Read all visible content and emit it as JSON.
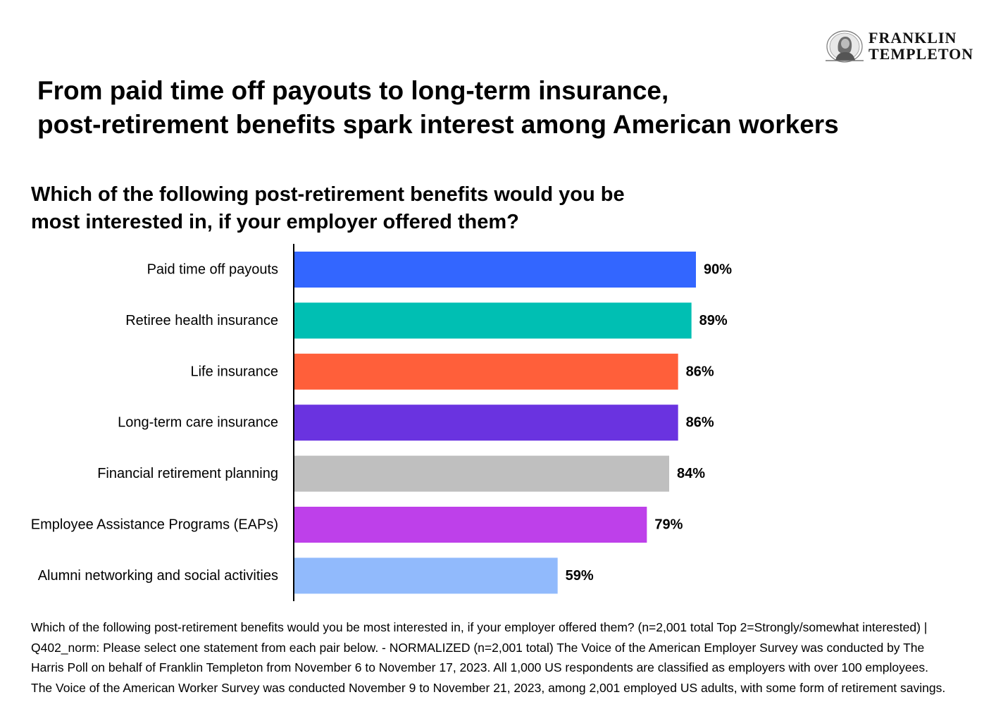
{
  "brand": {
    "line1": "FRANKLIN",
    "line2": "TEMPLETON",
    "icon": "benjamin-franklin-portrait-icon"
  },
  "headline": {
    "line1": "From paid time off payouts to long-term insurance,",
    "line2": "post-retirement benefits spark interest among American workers"
  },
  "question": {
    "line1": "Which of the following post-retirement benefits would you be",
    "line2": "most interested in, if your employer offered them?"
  },
  "chart_data": {
    "type": "bar",
    "orientation": "horizontal",
    "categories": [
      "Paid time off payouts",
      "Retiree health insurance",
      "Life insurance",
      "Long-term care insurance",
      "Financial retirement planning",
      "Employee Assistance Programs (EAPs)",
      "Alumni networking and social activities"
    ],
    "values": [
      90,
      89,
      86,
      86,
      84,
      79,
      59
    ],
    "value_labels": [
      "90%",
      "89%",
      "86%",
      "86%",
      "84%",
      "79%",
      "59%"
    ],
    "colors": [
      "#3366FF",
      "#00BFB3",
      "#FF5F3A",
      "#6A33E0",
      "#BFBFBF",
      "#BE40EA",
      "#91BAFC"
    ],
    "xlim": [
      0,
      100
    ],
    "grid": false,
    "legend": "none",
    "title": "",
    "xlabel": "",
    "ylabel": ""
  },
  "footnote": {
    "line1": "Which of the following post-retirement benefits would you be most interested in, if your employer offered them? (n=2,001 total Top 2=Strongly/somewhat interested) |",
    "line2": "Q402_norm: Please select one statement from each pair below. - NORMALIZED (n=2,001 total) The Voice of the American Employer Survey was conducted by The",
    "line3": "Harris Poll on behalf of Franklin Templeton from November 6 to November 17, 2023. All 1,000 US respondents are classified as employers with over 100 employees.",
    "line4": "The Voice of the American Worker Survey was conducted November 9 to November 21, 2023, among 2,001 employed US adults, with some form of retirement savings."
  }
}
